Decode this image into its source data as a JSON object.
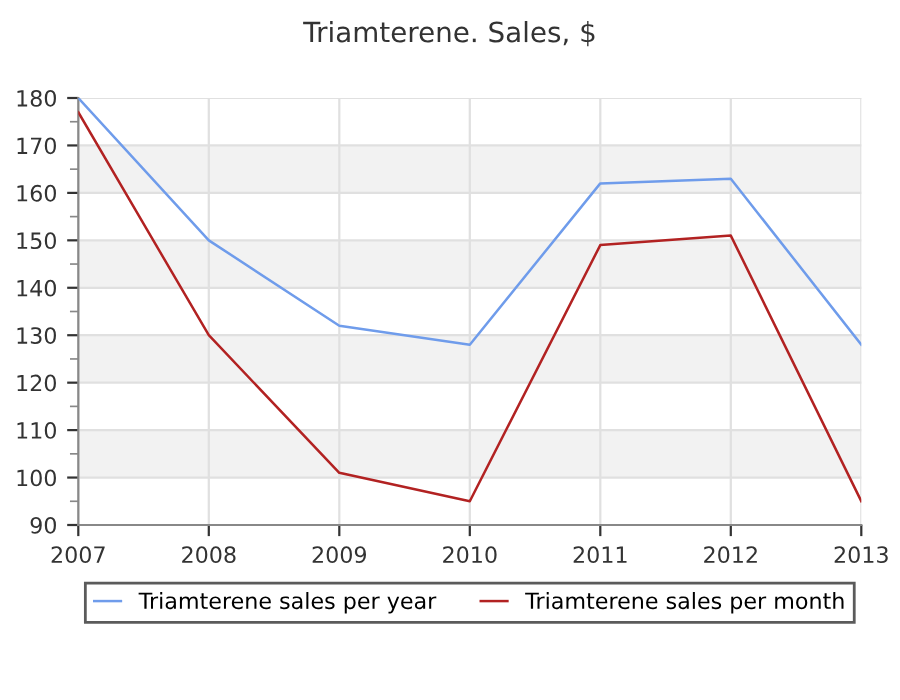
{
  "chart_data": {
    "type": "line",
    "title": "Triamterene. Sales, $",
    "x": [
      2007,
      2008,
      2009,
      2010,
      2011,
      2012,
      2013
    ],
    "series": [
      {
        "name": "Triamterene sales per year",
        "color": "#6f9ceb",
        "values": [
          180,
          150,
          132,
          128,
          162,
          163,
          128
        ]
      },
      {
        "name": "Triamterene sales per month",
        "color": "#b22222",
        "values": [
          177,
          130,
          101,
          95,
          149,
          151,
          95
        ]
      }
    ],
    "xlim": [
      2007,
      2013
    ],
    "xticks": [
      2007,
      2008,
      2009,
      2010,
      2011,
      2012,
      2013
    ],
    "ylim": [
      90,
      180
    ],
    "yticks": [
      90,
      100,
      110,
      120,
      130,
      140,
      150,
      160,
      170,
      180
    ],
    "bands": [
      {
        "axis": "y",
        "from": 100,
        "to": 110,
        "color": "#f2f2f2"
      },
      {
        "axis": "y",
        "from": 120,
        "to": 130,
        "color": "#f2f2f2"
      },
      {
        "axis": "y",
        "from": 140,
        "to": 150,
        "color": "#f2f2f2"
      },
      {
        "axis": "y",
        "from": 160,
        "to": 170,
        "color": "#f2f2f2"
      }
    ],
    "grid": true,
    "legend": "bottom",
    "marker": "none",
    "line_style": "solid"
  }
}
